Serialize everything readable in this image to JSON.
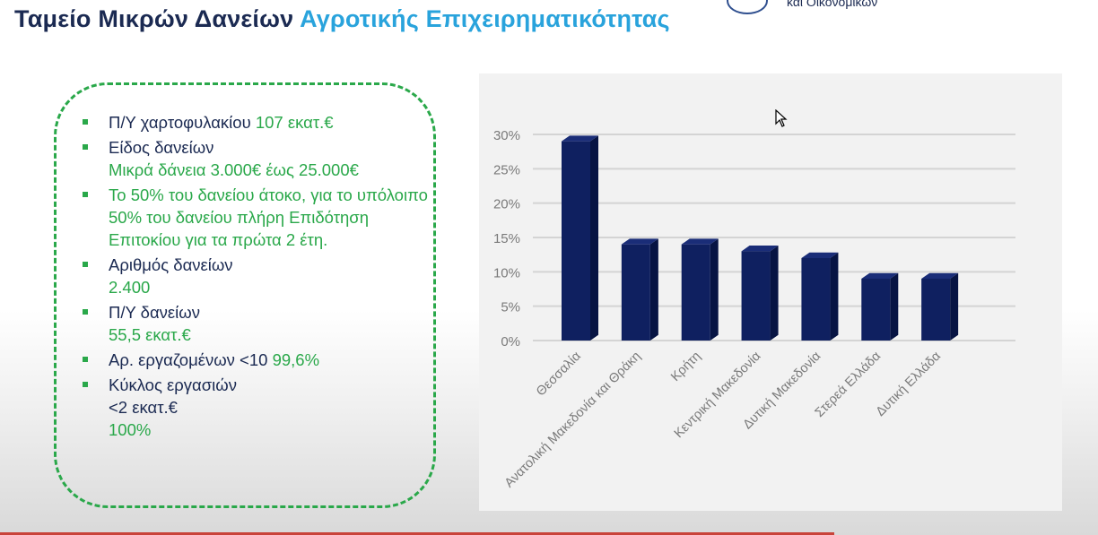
{
  "header": {
    "title_part1": "Ταμείο Μικρών Δανείων",
    "title_part2": "Αγροτικής Επιχειρηματικότητας",
    "ministry_text": "και Οικονομικών"
  },
  "info": {
    "items": [
      {
        "label": "Π/Υ χαρτοφυλακίου",
        "value": "107 εκατ.€"
      },
      {
        "label": "Είδος δανείων",
        "value": "Μικρά δάνεια 3.000€ έως 25.000€"
      },
      {
        "label": "",
        "value": "Το 50% του δανείου άτοκο, για το υπόλοιπο 50% του δανείου πλήρη Επιδότηση Επιτοκίου για τα πρώτα 2 έτη."
      },
      {
        "label": "Αριθμός δανείων",
        "value": "2.400"
      },
      {
        "label": "Π/Υ δανείων",
        "value": "55,5 εκατ.€"
      },
      {
        "label": "Αρ. εργαζομένων <10",
        "value": "99,6%"
      },
      {
        "label": "Κύκλος εργασιών",
        "value": "<2 εκατ.€",
        "value2": "100%"
      }
    ]
  },
  "chart_data": {
    "type": "bar",
    "title": "",
    "xlabel": "",
    "ylabel": "",
    "categories": [
      "Θεσσαλία",
      "Ανατολική Μακεδονία και Θράκη",
      "Κρήτη",
      "Κεντρική Μακεδονία",
      "Δυτική Μακεδονία",
      "Στερεά Ελλάδα",
      "Δυτική Ελλάδα"
    ],
    "values": [
      29,
      14,
      14,
      13,
      12,
      9,
      9
    ],
    "unit": "%",
    "ylim": [
      0,
      30
    ],
    "yticks": [
      0,
      5,
      10,
      15,
      20,
      25,
      30
    ],
    "ytick_labels": [
      "0%",
      "5%",
      "10%",
      "15%",
      "20%",
      "25%",
      "30%"
    ],
    "grid": true,
    "legend": "none",
    "bar_color": "#0f2060",
    "bar_side_color": "#071443"
  },
  "colors": {
    "title_dark": "#1b2a52",
    "title_accent": "#29a3dc",
    "green": "#2aa84a"
  }
}
